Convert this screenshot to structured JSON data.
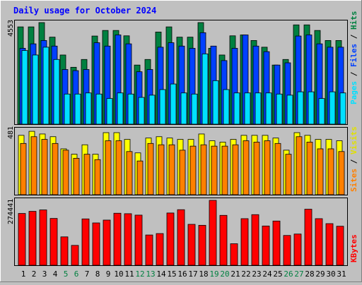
{
  "title": "Daily usage for October 2024",
  "colors": {
    "background": "#c0c0c0",
    "panel": "#c0c0c0",
    "title": "#0000ff",
    "hits": "#008040",
    "files": "#0040ff",
    "pages": "#00e0ff",
    "visits": "#ffff00",
    "sites": "#ff8000",
    "kbytes": "#ff0000",
    "weekend_label": "#008040",
    "weekday_label": "#000000"
  },
  "right_labels": {
    "pages": "Pages",
    "files": "Files",
    "hits": "Hits",
    "sites": "Sites",
    "visits": "Visits",
    "kbytes": "KBytes",
    "sep": " / "
  },
  "chart_data": [
    {
      "type": "bar",
      "panel": "hits-files-pages",
      "ymax_label": "4553",
      "ylim": [
        0,
        4553
      ],
      "categories": [
        "1",
        "2",
        "3",
        "4",
        "5",
        "6",
        "7",
        "8",
        "9",
        "10",
        "11",
        "12",
        "13",
        "14",
        "15",
        "16",
        "17",
        "18",
        "19",
        "20",
        "21",
        "22",
        "23",
        "24",
        "25",
        "26",
        "27",
        "28",
        "29",
        "30",
        "31"
      ],
      "weekend_days": [
        "5",
        "6",
        "12",
        "13",
        "19",
        "20",
        "26",
        "27"
      ],
      "series": [
        {
          "name": "Hits",
          "color": "#008040",
          "values": [
            4360,
            4360,
            4553,
            3900,
            3100,
            2550,
            2900,
            3950,
            4200,
            4200,
            3960,
            2650,
            2900,
            4130,
            4360,
            3900,
            3900,
            4553,
            3400,
            3100,
            3960,
            4000,
            3750,
            3450,
            2650,
            2900,
            4450,
            4450,
            4200,
            3750,
            3750
          ]
        },
        {
          "name": "Files",
          "color": "#0040ff",
          "values": [
            3400,
            3600,
            3750,
            3500,
            2450,
            2400,
            2450,
            3650,
            3500,
            4000,
            3600,
            2350,
            2450,
            3450,
            3650,
            3500,
            3400,
            4100,
            3500,
            2850,
            3400,
            4000,
            3500,
            3250,
            2650,
            2750,
            3950,
            4000,
            3600,
            3450,
            3450
          ]
        },
        {
          "name": "Pages",
          "color": "#00e0ff",
          "values": [
            3300,
            3100,
            3450,
            2900,
            1350,
            1350,
            1400,
            1350,
            1150,
            1400,
            1350,
            1200,
            1300,
            1550,
            1800,
            1400,
            1350,
            3150,
            1950,
            1550,
            1400,
            1400,
            1400,
            1400,
            1350,
            1300,
            1450,
            1450,
            1150,
            1450,
            1400
          ]
        }
      ]
    },
    {
      "type": "bar",
      "panel": "visits-sites",
      "ymax_label": "481",
      "ylim": [
        0,
        481
      ],
      "categories": [
        "1",
        "2",
        "3",
        "4",
        "5",
        "6",
        "7",
        "8",
        "9",
        "10",
        "11",
        "12",
        "13",
        "14",
        "15",
        "16",
        "17",
        "18",
        "19",
        "20",
        "21",
        "22",
        "23",
        "24",
        "25",
        "26",
        "27",
        "28",
        "29",
        "30",
        "31"
      ],
      "series": [
        {
          "name": "Visits",
          "color": "#ffff00",
          "values": [
            440,
            470,
            450,
            430,
            340,
            300,
            370,
            300,
            460,
            460,
            410,
            310,
            420,
            430,
            420,
            410,
            410,
            450,
            400,
            390,
            410,
            440,
            440,
            440,
            420,
            330,
            460,
            440,
            410,
            410,
            400
          ]
        },
        {
          "name": "Sites",
          "color": "#ff8000",
          "values": [
            380,
            430,
            410,
            380,
            330,
            270,
            300,
            260,
            400,
            400,
            320,
            250,
            380,
            370,
            370,
            330,
            360,
            370,
            360,
            360,
            370,
            400,
            390,
            400,
            380,
            300,
            430,
            390,
            340,
            340,
            320
          ]
        }
      ]
    },
    {
      "type": "bar",
      "panel": "kbytes",
      "ymax_label": "274441",
      "ylim": [
        0,
        274441
      ],
      "categories": [
        "1",
        "2",
        "3",
        "4",
        "5",
        "6",
        "7",
        "8",
        "9",
        "10",
        "11",
        "12",
        "13",
        "14",
        "15",
        "16",
        "17",
        "18",
        "19",
        "20",
        "21",
        "22",
        "23",
        "24",
        "25",
        "26",
        "27",
        "28",
        "29",
        "30",
        "31"
      ],
      "series": [
        {
          "name": "KBytes",
          "color": "#ff0000",
          "values": [
            219000,
            228000,
            234000,
            198000,
            120000,
            84000,
            196000,
            179000,
            191000,
            220000,
            218000,
            212000,
            128000,
            134000,
            221000,
            235000,
            173000,
            169000,
            274441,
            211000,
            91000,
            197000,
            214000,
            166000,
            187000,
            126000,
            132000,
            237000,
            197000,
            176000,
            165000
          ]
        }
      ]
    }
  ]
}
